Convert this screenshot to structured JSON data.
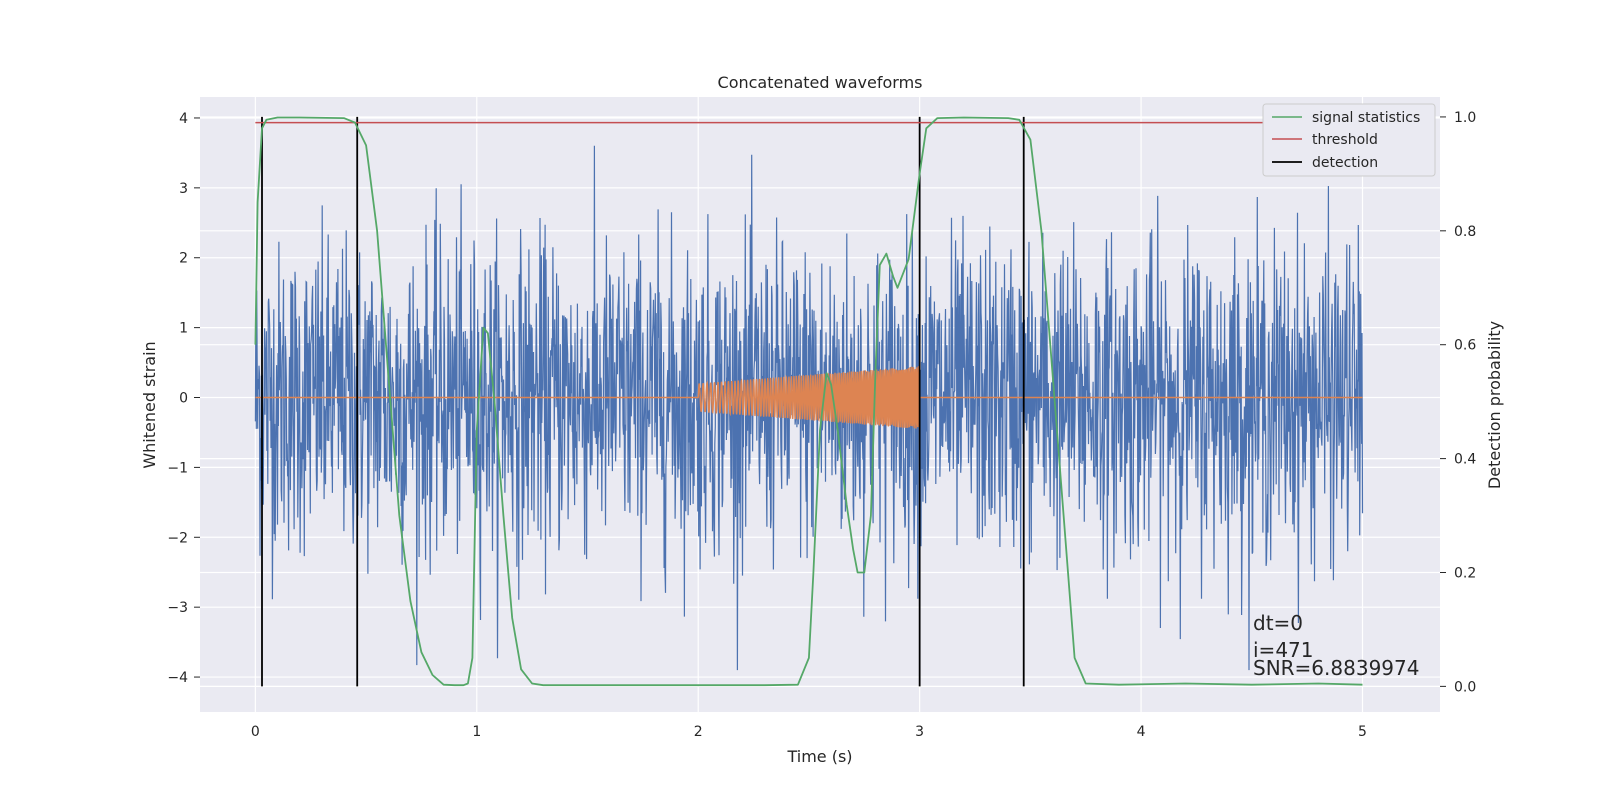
{
  "chart_data": {
    "type": "line",
    "title": "Concatenated waveforms",
    "xlabel": "Time (s)",
    "ylabel": "Whitened strain",
    "y2label": "Detection probability",
    "xlim": [
      -0.25,
      5.35
    ],
    "ylim": [
      -4.5,
      4.3
    ],
    "y2lim": [
      -0.045,
      1.035
    ],
    "xticks": [
      "0",
      "1",
      "2",
      "3",
      "4",
      "5"
    ],
    "yticks": [
      "4",
      "3",
      "2",
      "1",
      "0",
      "−1",
      "−2",
      "−3",
      "−4"
    ],
    "y2ticks": [
      "1.0",
      "0.8",
      "0.6",
      "0.4",
      "0.2",
      "0.0"
    ],
    "grid": true,
    "legend_position": "top-right",
    "series": [
      {
        "name": "",
        "axis": "left",
        "color": "#4c72b0",
        "description_kind": "noise",
        "x_range": [
          0,
          5
        ],
        "amplitude": 1.1
      },
      {
        "name": "",
        "axis": "left",
        "color": "#dd8452",
        "description_kind": "chirp",
        "x_range": [
          2,
          3
        ],
        "amp_start": 0.2,
        "amp_end": 0.45
      },
      {
        "name": "signal statistics",
        "axis": "right",
        "color": "#55a868",
        "x": [
          0,
          0.01,
          0.03,
          0.05,
          0.1,
          0.2,
          0.4,
          0.45,
          0.5,
          0.55,
          0.6,
          0.65,
          0.7,
          0.75,
          0.8,
          0.85,
          0.9,
          0.94,
          0.96,
          0.98,
          1.0,
          1.03,
          1.05,
          1.08,
          1.12,
          1.16,
          1.2,
          1.25,
          1.3,
          1.5,
          2.0,
          2.3,
          2.45,
          2.5,
          2.52,
          2.55,
          2.58,
          2.6,
          2.63,
          2.67,
          2.7,
          2.72,
          2.75,
          2.78,
          2.8,
          2.82,
          2.85,
          2.88,
          2.9,
          2.95,
          3.0,
          3.03,
          3.08,
          3.2,
          3.4,
          3.45,
          3.5,
          3.55,
          3.6,
          3.65,
          3.7,
          3.75,
          3.9,
          4.2,
          4.5,
          4.8,
          5.0
        ],
        "y": [
          0.6,
          0.85,
          0.98,
          0.995,
          0.999,
          0.999,
          0.998,
          0.99,
          0.95,
          0.8,
          0.55,
          0.3,
          0.15,
          0.06,
          0.02,
          0.003,
          0.002,
          0.002,
          0.005,
          0.05,
          0.45,
          0.63,
          0.62,
          0.5,
          0.3,
          0.12,
          0.03,
          0.005,
          0.002,
          0.002,
          0.002,
          0.002,
          0.003,
          0.05,
          0.2,
          0.45,
          0.55,
          0.53,
          0.45,
          0.32,
          0.24,
          0.2,
          0.2,
          0.3,
          0.55,
          0.74,
          0.76,
          0.72,
          0.7,
          0.75,
          0.9,
          0.98,
          0.998,
          0.999,
          0.998,
          0.995,
          0.96,
          0.8,
          0.55,
          0.3,
          0.05,
          0.005,
          0.003,
          0.005,
          0.003,
          0.005,
          0.003
        ]
      },
      {
        "name": "threshold",
        "axis": "right",
        "color": "#c44e52",
        "x": [
          0,
          5
        ],
        "y": [
          0.99,
          0.99
        ]
      },
      {
        "name": "detection",
        "axis": "right",
        "color": "#000000",
        "x": [
          0.03,
          0.46,
          3.0,
          3.47
        ],
        "y_range": [
          0,
          1
        ]
      }
    ],
    "annotations": [
      "dt=0",
      "i=471",
      "SNR=6.8839974"
    ]
  }
}
